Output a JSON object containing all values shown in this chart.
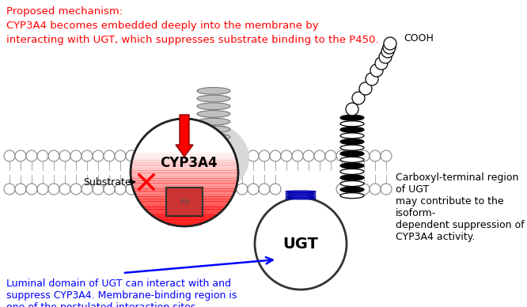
{
  "title_lines": [
    "Proposed mechanism:",
    "CYP3A4 becomes embedded deeply into the membrane by",
    "interacting with UGT, which suppresses substrate binding to the P450."
  ],
  "title_color": "#ff0000",
  "bg_color": "#ffffff",
  "annotation_right": "Carboxyl-terminal region of UGT\nmay contribute to the isoform-\ndependent suppression of\nCYP3A4 activity.",
  "annotation_bottom": "Luminal domain of UGT can interact with and\nsuppress CYP3A4. Membrane-binding region is\none of the postulated interaction sites.",
  "substrate_text": "Substrate",
  "cooh_text": "COOH"
}
